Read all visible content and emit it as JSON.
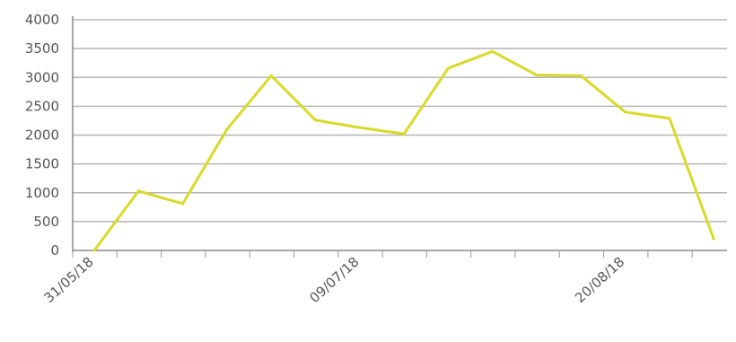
{
  "chart_data": {
    "type": "line",
    "title": "",
    "xlabel": "",
    "ylabel": "",
    "ylim": [
      0,
      4000
    ],
    "y_ticks": [
      "0",
      "500",
      "1000",
      "1500",
      "2000",
      "2500",
      "3000",
      "3500",
      "4000"
    ],
    "x_tick_labels": [
      {
        "label": "31/05/18",
        "index": 0
      },
      {
        "label": "09/07/18",
        "index": 6
      },
      {
        "label": "20/08/18",
        "index": 12
      }
    ],
    "grid": true,
    "series": [
      {
        "color": "#d9d92a",
        "values": [
          0,
          1030,
          810,
          2100,
          3030,
          2260,
          2130,
          2020,
          3160,
          3450,
          3040,
          3030,
          2400,
          2290,
          200
        ]
      }
    ]
  }
}
